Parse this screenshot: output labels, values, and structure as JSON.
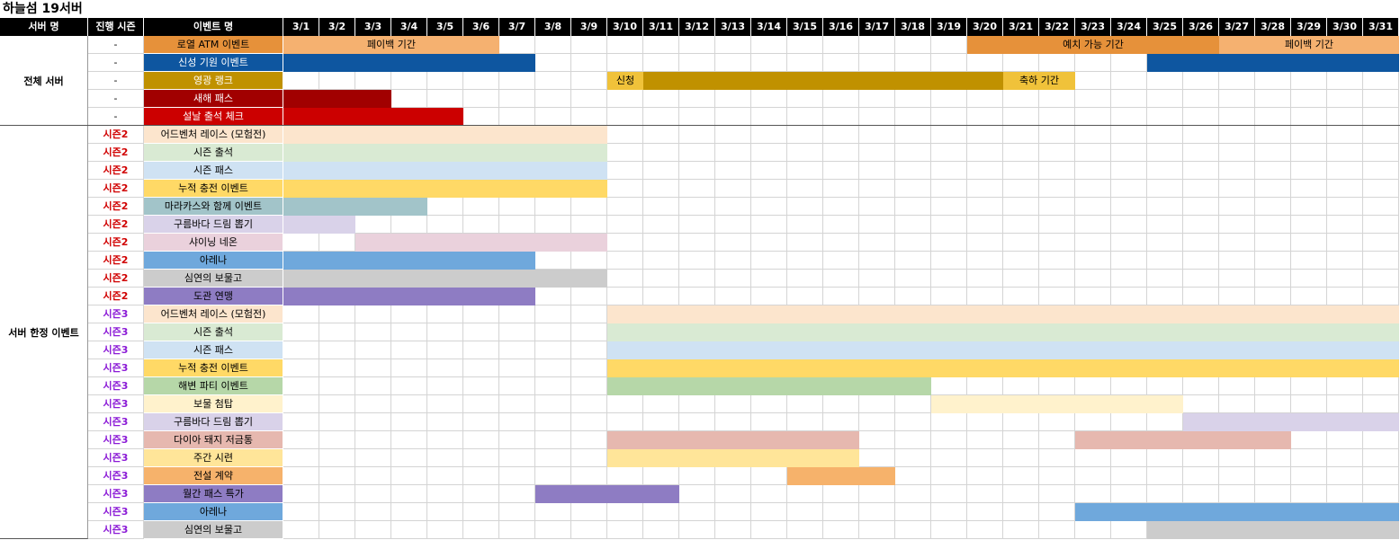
{
  "title": "하늘섬 19서버",
  "headers": {
    "server": "서버 명",
    "season": "진행 시즌",
    "event": "이벤트 명"
  },
  "days": [
    "3/1",
    "3/2",
    "3/3",
    "3/4",
    "3/5",
    "3/6",
    "3/7",
    "3/8",
    "3/9",
    "3/10",
    "3/11",
    "3/12",
    "3/13",
    "3/14",
    "3/15",
    "3/16",
    "3/17",
    "3/18",
    "3/19",
    "3/20",
    "3/21",
    "3/22",
    "3/23",
    "3/24",
    "3/25",
    "3/26",
    "3/27",
    "3/28",
    "3/29",
    "3/30",
    "3/31"
  ],
  "groups": [
    {
      "label": "전체 서버",
      "start_row": 0,
      "rows": 5
    },
    {
      "label": "서버 한정 이벤트",
      "start_row": 5,
      "rows": 23
    }
  ],
  "rows": [
    {
      "season": "-",
      "season_color": "#000000",
      "name": "로열 ATM 이벤트",
      "name_bg": "#E6913A",
      "name_color": "#000000",
      "bars": [
        {
          "start": 1,
          "end": 6,
          "color": "#F5B170",
          "label": "페이백 기간"
        },
        {
          "start": 20,
          "end": 26,
          "color": "#E6913A",
          "label": "예치 가능 기간"
        },
        {
          "start": 27,
          "end": 31,
          "color": "#F5B170",
          "label": "페이백 기간"
        }
      ]
    },
    {
      "season": "-",
      "season_color": "#000000",
      "name": "신성 기원 이벤트",
      "name_bg": "#0E56A0",
      "name_color": "#ffffff",
      "bars": [
        {
          "start": 1,
          "end": 7,
          "color": "#0E56A0",
          "label": ""
        },
        {
          "start": 25,
          "end": 31,
          "color": "#0E56A0",
          "label": ""
        }
      ]
    },
    {
      "season": "-",
      "season_color": "#000000",
      "name": "영광 랭크",
      "name_bg": "#C09100",
      "name_color": "#ffffff",
      "bars": [
        {
          "start": 10,
          "end": 10,
          "color": "#F0C23A",
          "label": "신청"
        },
        {
          "start": 11,
          "end": 20,
          "color": "#C09100",
          "label": ""
        },
        {
          "start": 21,
          "end": 22,
          "color": "#F0C23A",
          "label": "축하 기간"
        }
      ]
    },
    {
      "season": "-",
      "season_color": "#000000",
      "name": "새해 패스",
      "name_bg": "#A10000",
      "name_color": "#ffffff",
      "bars": [
        {
          "start": 1,
          "end": 3,
          "color": "#A10000",
          "label": ""
        }
      ]
    },
    {
      "season": "-",
      "season_color": "#000000",
      "name": "설날 출석 체크",
      "name_bg": "#CC0000",
      "name_color": "#ffffff",
      "bars": [
        {
          "start": 1,
          "end": 5,
          "color": "#CC0000",
          "label": ""
        }
      ]
    },
    {
      "season": "시즌2",
      "season_color": "#D00000",
      "name": "어드벤처 레이스 (모험전)",
      "name_bg": "#FCE5CD",
      "name_color": "#000000",
      "bars": [
        {
          "start": 1,
          "end": 9,
          "color": "#FCE5CD",
          "label": ""
        }
      ]
    },
    {
      "season": "시즌2",
      "season_color": "#D00000",
      "name": "시즌 출석",
      "name_bg": "#D9EAD3",
      "name_color": "#000000",
      "bars": [
        {
          "start": 1,
          "end": 9,
          "color": "#D9EAD3",
          "label": ""
        }
      ]
    },
    {
      "season": "시즌2",
      "season_color": "#D00000",
      "name": "시즌 패스",
      "name_bg": "#CFE2F3",
      "name_color": "#000000",
      "bars": [
        {
          "start": 1,
          "end": 9,
          "color": "#CFE2F3",
          "label": ""
        }
      ]
    },
    {
      "season": "시즌2",
      "season_color": "#D00000",
      "name": "누적 충전 이벤트",
      "name_bg": "#FFD966",
      "name_color": "#000000",
      "bars": [
        {
          "start": 1,
          "end": 9,
          "color": "#FFD966",
          "label": ""
        }
      ]
    },
    {
      "season": "시즌2",
      "season_color": "#D00000",
      "name": "마라카스와 함께 이벤트",
      "name_bg": "#A2C4C9",
      "name_color": "#000000",
      "bars": [
        {
          "start": 1,
          "end": 4,
          "color": "#A2C4C9",
          "label": ""
        }
      ]
    },
    {
      "season": "시즌2",
      "season_color": "#D00000",
      "name": "구름바다 드림 뽑기",
      "name_bg": "#D9D2E9",
      "name_color": "#000000",
      "bars": [
        {
          "start": 1,
          "end": 2,
          "color": "#D9D2E9",
          "label": ""
        }
      ]
    },
    {
      "season": "시즌2",
      "season_color": "#D00000",
      "name": "샤이닝 네온",
      "name_bg": "#EAD1DC",
      "name_color": "#000000",
      "bars": [
        {
          "start": 3,
          "end": 9,
          "color": "#EAD1DC",
          "label": ""
        }
      ]
    },
    {
      "season": "시즌2",
      "season_color": "#D00000",
      "name": "아레나",
      "name_bg": "#6FA8DC",
      "name_color": "#000000",
      "bars": [
        {
          "start": 1,
          "end": 7,
          "color": "#6FA8DC",
          "label": ""
        }
      ]
    },
    {
      "season": "시즌2",
      "season_color": "#D00000",
      "name": "심연의 보물고",
      "name_bg": "#CCCCCC",
      "name_color": "#000000",
      "bars": [
        {
          "start": 1,
          "end": 9,
          "color": "#CCCCCC",
          "label": ""
        }
      ]
    },
    {
      "season": "시즌2",
      "season_color": "#D00000",
      "name": "도관 연맹",
      "name_bg": "#8E7CC3",
      "name_color": "#000000",
      "bars": [
        {
          "start": 1,
          "end": 7,
          "color": "#8E7CC3",
          "label": ""
        }
      ]
    },
    {
      "season": "시즌3",
      "season_color": "#8B1AD6",
      "name": "어드벤처 레이스 (모험전)",
      "name_bg": "#FCE5CD",
      "name_color": "#000000",
      "bars": [
        {
          "start": 10,
          "end": 31,
          "color": "#FCE5CD",
          "label": ""
        }
      ]
    },
    {
      "season": "시즌3",
      "season_color": "#8B1AD6",
      "name": "시즌 출석",
      "name_bg": "#D9EAD3",
      "name_color": "#000000",
      "bars": [
        {
          "start": 10,
          "end": 31,
          "color": "#D9EAD3",
          "label": ""
        }
      ]
    },
    {
      "season": "시즌3",
      "season_color": "#8B1AD6",
      "name": "시즌 패스",
      "name_bg": "#CFE2F3",
      "name_color": "#000000",
      "bars": [
        {
          "start": 10,
          "end": 31,
          "color": "#CFE2F3",
          "label": ""
        }
      ]
    },
    {
      "season": "시즌3",
      "season_color": "#8B1AD6",
      "name": "누적 충전 이벤트",
      "name_bg": "#FFD966",
      "name_color": "#000000",
      "bars": [
        {
          "start": 10,
          "end": 31,
          "color": "#FFD966",
          "label": ""
        }
      ]
    },
    {
      "season": "시즌3",
      "season_color": "#8B1AD6",
      "name": "해변 파티 이벤트",
      "name_bg": "#B6D7A8",
      "name_color": "#000000",
      "bars": [
        {
          "start": 10,
          "end": 18,
          "color": "#B6D7A8",
          "label": ""
        }
      ]
    },
    {
      "season": "시즌3",
      "season_color": "#8B1AD6",
      "name": "보물 첨탑",
      "name_bg": "#FFF2CC",
      "name_color": "#000000",
      "bars": [
        {
          "start": 19,
          "end": 25,
          "color": "#FFF2CC",
          "label": ""
        }
      ]
    },
    {
      "season": "시즌3",
      "season_color": "#8B1AD6",
      "name": "구름바다 드림 뽑기",
      "name_bg": "#D9D2E9",
      "name_color": "#000000",
      "bars": [
        {
          "start": 26,
          "end": 31,
          "color": "#D9D2E9",
          "label": ""
        }
      ]
    },
    {
      "season": "시즌3",
      "season_color": "#8B1AD6",
      "name": "다이아 돼지 저금통",
      "name_bg": "#E6B8AF",
      "name_color": "#000000",
      "bars": [
        {
          "start": 10,
          "end": 16,
          "color": "#E6B8AF",
          "label": ""
        },
        {
          "start": 23,
          "end": 28,
          "color": "#E6B8AF",
          "label": ""
        }
      ]
    },
    {
      "season": "시즌3",
      "season_color": "#8B1AD6",
      "name": "주간 시련",
      "name_bg": "#FFE599",
      "name_color": "#000000",
      "bars": [
        {
          "start": 10,
          "end": 16,
          "color": "#FFE599",
          "label": ""
        }
      ]
    },
    {
      "season": "시즌3",
      "season_color": "#8B1AD6",
      "name": "전설 계약",
      "name_bg": "#F6B26B",
      "name_color": "#000000",
      "bars": [
        {
          "start": 15,
          "end": 17,
          "color": "#F6B26B",
          "label": ""
        }
      ]
    },
    {
      "season": "시즌3",
      "season_color": "#8B1AD6",
      "name": "월간 패스 특가",
      "name_bg": "#8E7CC3",
      "name_color": "#000000",
      "bars": [
        {
          "start": 8,
          "end": 11,
          "color": "#8E7CC3",
          "label": ""
        }
      ]
    },
    {
      "season": "시즌3",
      "season_color": "#8B1AD6",
      "name": "아레나",
      "name_bg": "#6FA8DC",
      "name_color": "#000000",
      "bars": [
        {
          "start": 23,
          "end": 31,
          "color": "#6FA8DC",
          "label": ""
        }
      ]
    },
    {
      "season": "시즌3",
      "season_color": "#8B1AD6",
      "name": "심연의 보물고",
      "name_bg": "#CCCCCC",
      "name_color": "#000000",
      "bars": [
        {
          "start": 25,
          "end": 31,
          "color": "#CCCCCC",
          "label": ""
        }
      ]
    }
  ]
}
